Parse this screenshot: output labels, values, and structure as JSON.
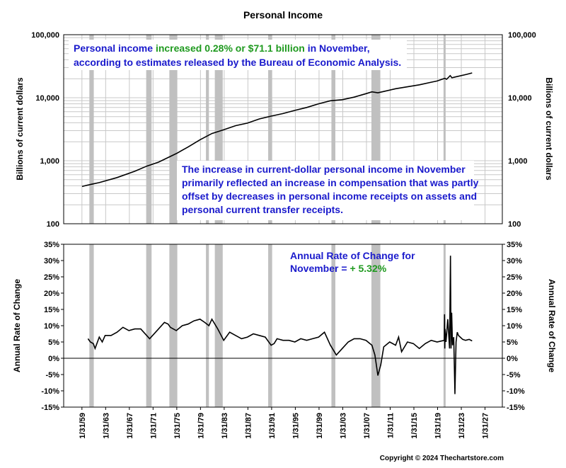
{
  "chart_data": [
    {
      "type": "line",
      "title": "Personal Income",
      "ylabel": "Billions of current dollars",
      "ylabel_right": "Billions of current dollars",
      "yscale": "log",
      "ylim": [
        100,
        100000
      ],
      "yticks": [
        "100,000",
        "10,000",
        "1,000",
        "100"
      ],
      "ytick_values": [
        100000,
        10000,
        1000,
        100
      ],
      "xlim": [
        1956,
        2030
      ],
      "grid": true,
      "series": [
        {
          "x": [
            1959.1,
            1960,
            1962,
            1965,
            1968,
            1970,
            1972,
            1975,
            1977,
            1979,
            1981,
            1983,
            1985,
            1987,
            1989,
            1991,
            1993,
            1995,
            1997,
            1999,
            2001,
            2003,
            2005,
            2007,
            2008,
            2009,
            2010,
            2012,
            2014,
            2016,
            2018,
            2019,
            2020.3,
            2020.6,
            2021.2,
            2021.5,
            2022,
            2024,
            2024.9
          ],
          "values": [
            390,
            410,
            450,
            540,
            680,
            820,
            950,
            1300,
            1650,
            2150,
            2700,
            3100,
            3600,
            3950,
            4600,
            5100,
            5600,
            6300,
            7000,
            8000,
            8950,
            9300,
            10200,
            11600,
            12400,
            12000,
            12550,
            13900,
            14900,
            16000,
            17600,
            18400,
            20300,
            19600,
            22400,
            20700,
            21300,
            23500,
            24750
          ]
        }
      ],
      "annotations": [
        {
          "parts": [
            {
              "text": "Personal income ",
              "color": "#1a1acc"
            },
            {
              "text": "increased 0.28% or $71.1 billion",
              "color": "#1f9a1f"
            },
            {
              "text": " in November,",
              "color": "#1a1acc"
            }
          ]
        },
        {
          "parts": [
            {
              "text": "according to estimates released by the Bureau of Economic Analysis.",
              "color": "#1a1acc"
            }
          ]
        },
        {
          "parts": [
            {
              "text": "The increase in current-dollar personal income in November",
              "color": "#1a1acc"
            }
          ]
        },
        {
          "parts": [
            {
              "text": "primarily reflected an increase in compensation that was partly",
              "color": "#1a1acc"
            }
          ]
        },
        {
          "parts": [
            {
              "text": "offset by decreases in personal income receipts on assets and",
              "color": "#1a1acc"
            }
          ]
        },
        {
          "parts": [
            {
              "text": "personal current transfer receipts.",
              "color": "#1a1acc"
            }
          ]
        }
      ]
    },
    {
      "type": "line",
      "ylabel": "Annual Rate of Change",
      "ylabel_right": "Annual Rate of Change",
      "ylim": [
        -15,
        35
      ],
      "yticks": [
        "35%",
        "30%",
        "25%",
        "20%",
        "15%",
        "10%",
        "5%",
        "0%",
        "-5%",
        "-10%",
        "-15%"
      ],
      "ytick_values": [
        35,
        30,
        25,
        20,
        15,
        10,
        5,
        0,
        -5,
        -10,
        -15
      ],
      "xlim": [
        1956,
        2030
      ],
      "xticks": [
        "1/31/59",
        "1/31/63",
        "1/31/67",
        "1/31/71",
        "1/31/75",
        "1/31/79",
        "1/31/83",
        "1/31/87",
        "1/31/91",
        "1/31/95",
        "1/31/99",
        "1/31/03",
        "1/31/07",
        "1/31/11",
        "1/31/15",
        "1/31/19",
        "1/31/23",
        "1/31/27"
      ],
      "xtick_values": [
        1959.08,
        1963.08,
        1967.08,
        1971.08,
        1975.08,
        1979.08,
        1983.08,
        1987.08,
        1991.08,
        1995.08,
        1999.08,
        2003.08,
        2007.08,
        2011.08,
        2015.08,
        2019.08,
        2023.08,
        2027.08
      ],
      "grid": false,
      "series": [
        {
          "x": [
            1960.1,
            1960.5,
            1961,
            1961.3,
            1962,
            1962.5,
            1963,
            1964,
            1965,
            1966,
            1967,
            1968,
            1969,
            1970,
            1970.5,
            1971.5,
            1972,
            1973,
            1973.6,
            1974,
            1975,
            1976,
            1977,
            1978,
            1979,
            1979.8,
            1980.5,
            1981,
            1982,
            1983,
            1984,
            1985,
            1986,
            1987,
            1988,
            1989,
            1990,
            1991,
            1991.5,
            1992,
            1993,
            1994,
            1995,
            1996,
            1997,
            1998,
            1999,
            2000,
            2001,
            2002,
            2003,
            2004,
            2005,
            2006,
            2007,
            2008,
            2008.5,
            2009,
            2009.5,
            2010,
            2011,
            2012,
            2012.5,
            2013,
            2014,
            2015,
            2016,
            2017,
            2018,
            2019,
            2020.2,
            2020.25,
            2020.3,
            2020.35,
            2020.5,
            2020.8,
            2021.1,
            2021.25,
            2021.35,
            2021.45,
            2021.6,
            2021.8,
            2022,
            2022.2,
            2022.4,
            2022.6,
            2022.9,
            2023.3,
            2023.8,
            2024.4,
            2024.9
          ],
          "values": [
            6,
            5,
            4.5,
            3,
            6.5,
            5,
            7,
            7,
            8,
            9.5,
            8.5,
            9,
            9,
            7,
            6,
            8,
            9,
            11,
            10.5,
            9.5,
            8.5,
            10,
            10.5,
            11.5,
            12,
            11,
            10,
            12,
            9,
            5.5,
            8,
            7,
            6,
            6.5,
            7.5,
            7,
            6.5,
            4,
            4.5,
            6,
            5.5,
            5.5,
            5,
            6,
            5.5,
            6,
            6.5,
            8,
            4,
            1,
            3,
            5,
            6,
            6,
            5.5,
            4,
            1,
            -5.3,
            -2,
            3.5,
            5,
            4,
            6.5,
            2,
            5,
            4.5,
            3,
            4.5,
            5.5,
            5,
            5.5,
            13.5,
            3,
            9,
            5,
            12,
            3,
            31.5,
            3,
            14,
            4,
            6.5,
            -11,
            5,
            8,
            7,
            6.5,
            5.8,
            5.5,
            5.8,
            5.32
          ]
        }
      ],
      "annotations": [
        {
          "parts": [
            {
              "text": "Annual Rate of Change for",
              "color": "#1a1acc"
            }
          ]
        },
        {
          "parts": [
            {
              "text": "November = ",
              "color": "#1a1acc"
            },
            {
              "text": "+ 5.32%",
              "color": "#1f9a1f"
            }
          ]
        }
      ]
    }
  ],
  "recessions": [
    [
      1960.33,
      1961.08
    ],
    [
      1969.92,
      1970.83
    ],
    [
      1973.83,
      1975.17
    ],
    [
      1980.0,
      1980.5
    ],
    [
      1981.5,
      1982.83
    ],
    [
      1990.5,
      1991.17
    ],
    [
      2001.17,
      2001.83
    ],
    [
      2007.92,
      2009.42
    ],
    [
      2020.08,
      2020.33
    ]
  ],
  "copyright": "Copyright © 2024 Thechartstore.com"
}
